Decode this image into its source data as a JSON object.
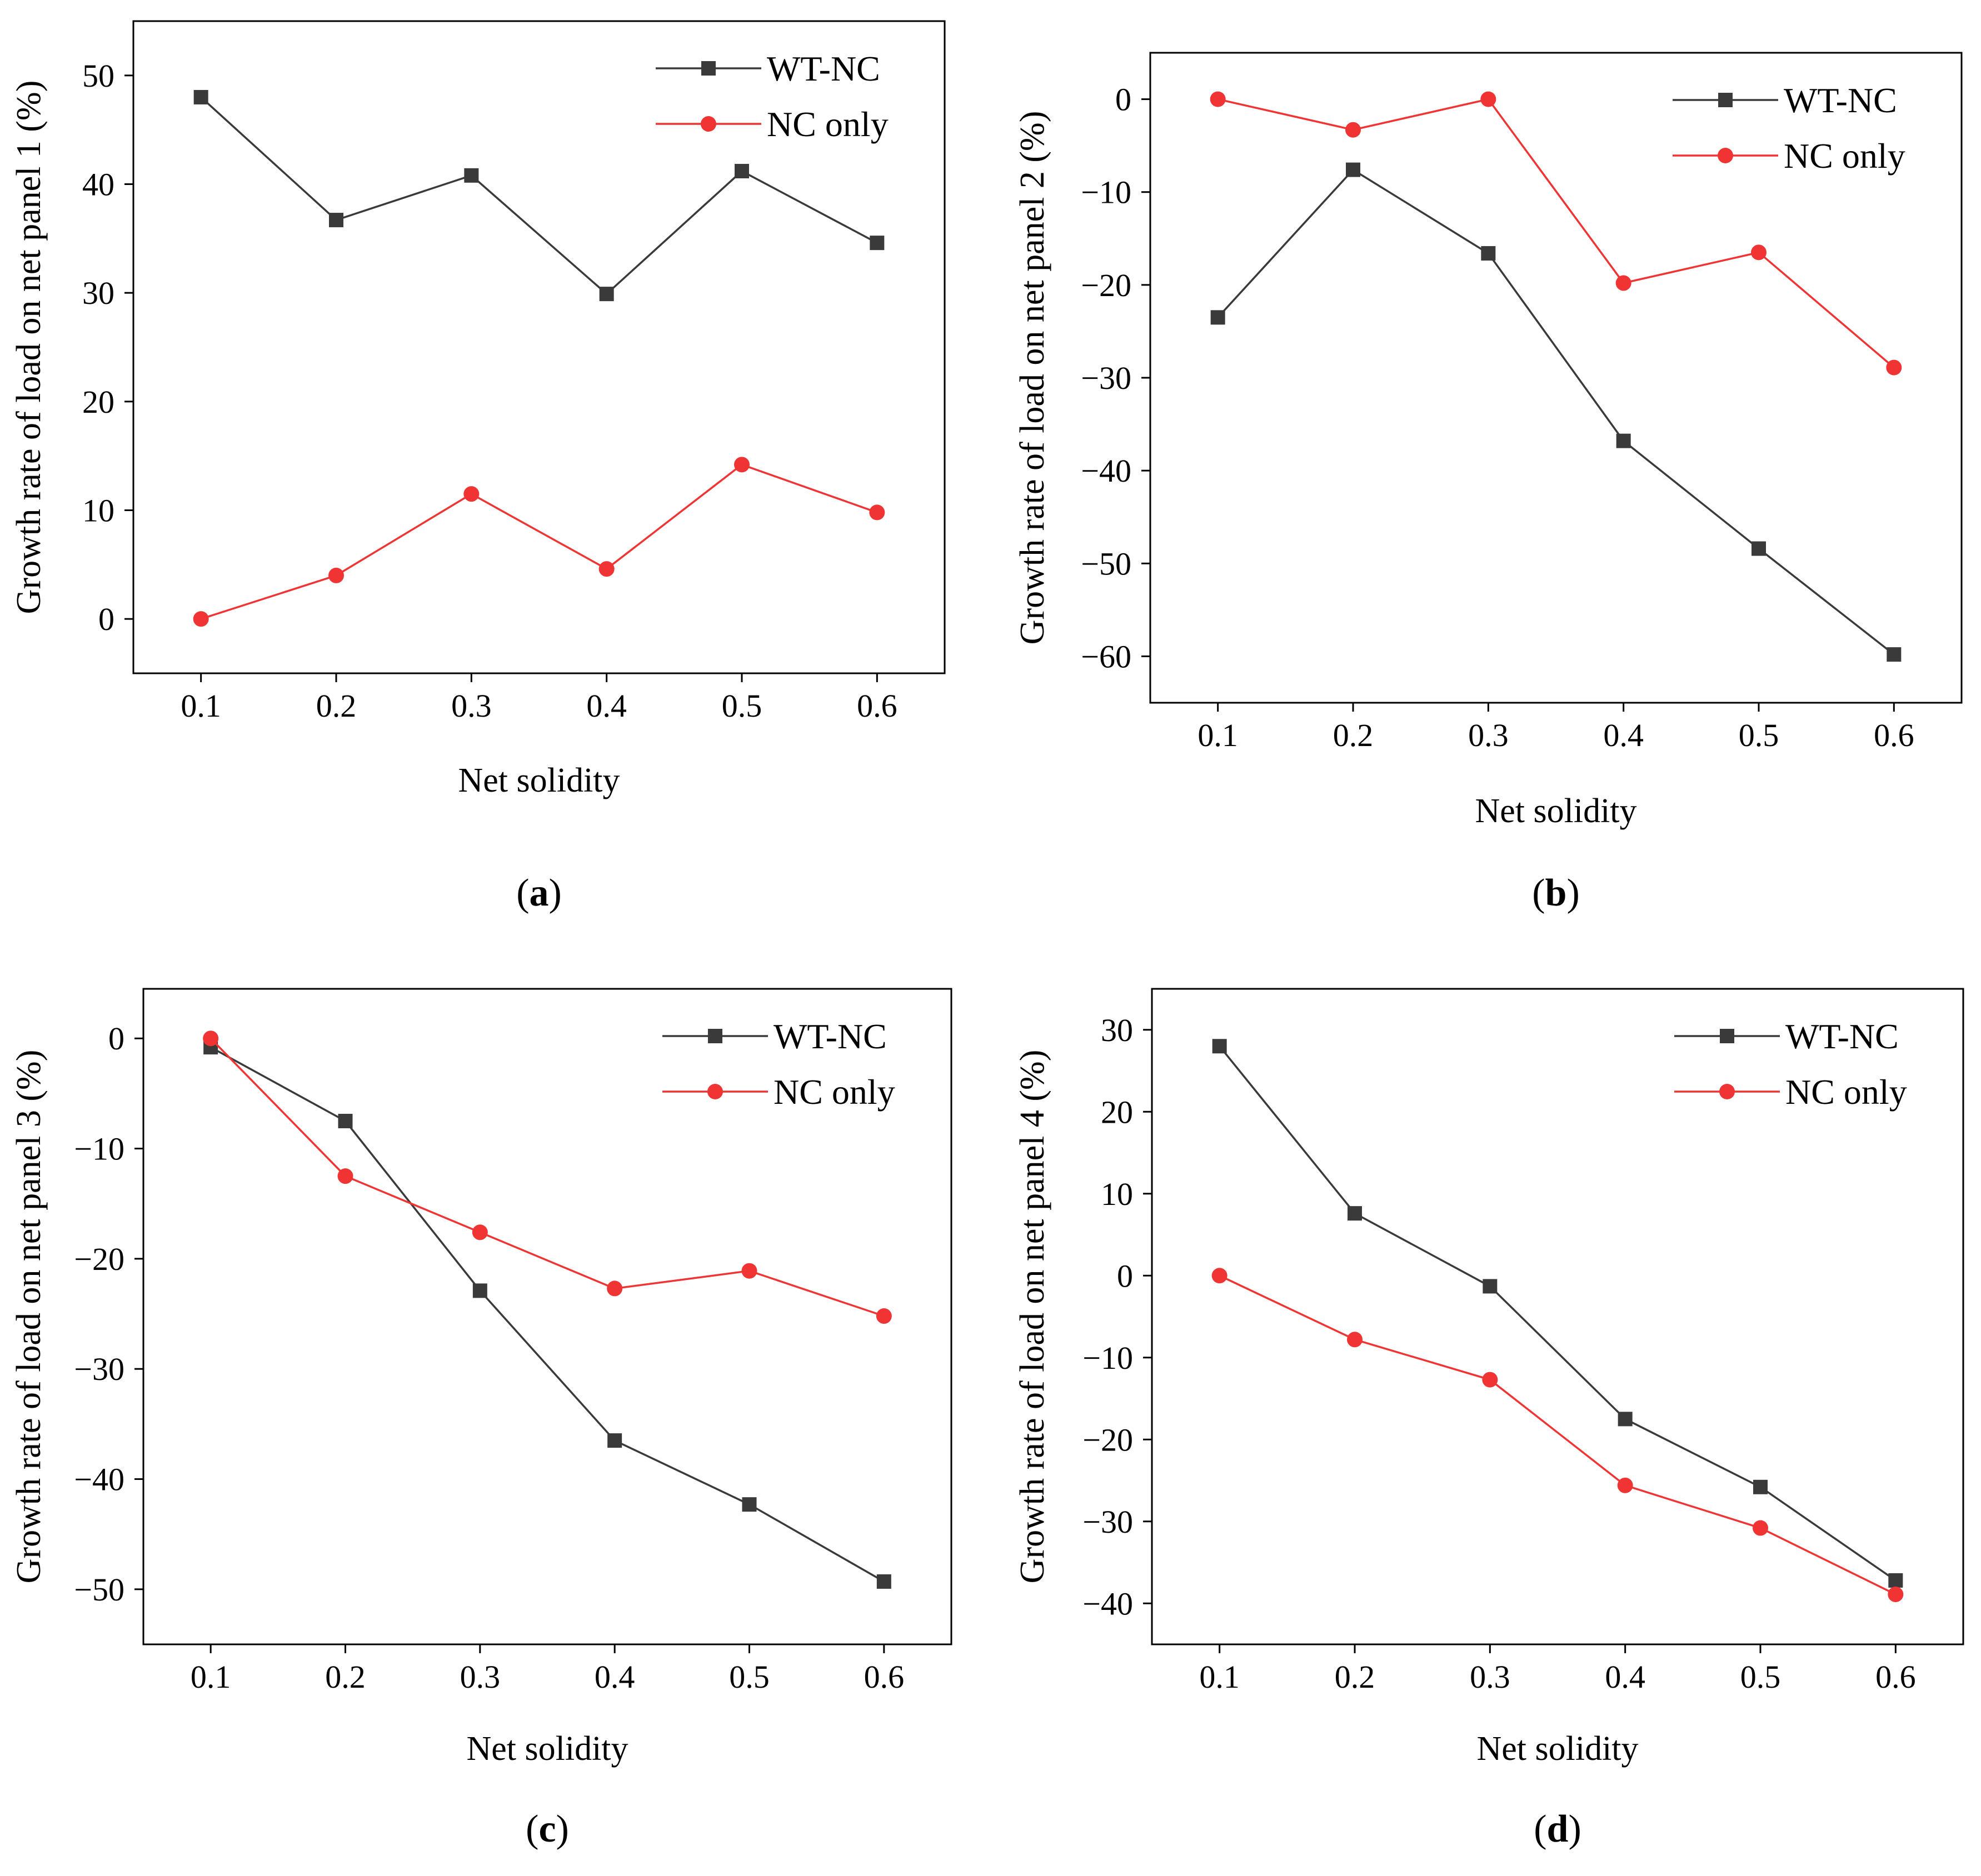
{
  "chart_data": [
    {
      "type": "line",
      "panel_label": "a",
      "caption_open": "(",
      "caption_close": ")",
      "xlabel": "Net solidity",
      "ylabel": "Growth rate of load on net panel 1 (%)",
      "x": [
        0.1,
        0.2,
        0.3,
        0.4,
        0.5,
        0.6
      ],
      "xtick_labels": [
        "0.1",
        "0.2",
        "0.3",
        "0.4",
        "0.5",
        "0.6"
      ],
      "xlim": [
        0.05,
        0.65
      ],
      "ylim": [
        -5,
        55
      ],
      "yticks": [
        0,
        10,
        20,
        30,
        40,
        50
      ],
      "ytick_labels": [
        "0",
        "10",
        "20",
        "30",
        "40",
        "50"
      ],
      "legend_position": "top-right",
      "series": [
        {
          "name": "WT-NC",
          "marker": "square",
          "color": "#3a3a3a",
          "values": [
            48.0,
            36.7,
            40.8,
            29.9,
            41.2,
            34.6
          ]
        },
        {
          "name": "NC only",
          "marker": "circle",
          "color": "#f03434",
          "values": [
            0.0,
            4.0,
            11.5,
            4.6,
            14.2,
            9.8
          ]
        }
      ]
    },
    {
      "type": "line",
      "panel_label": "b",
      "caption_open": "(",
      "caption_close": ")",
      "xlabel": "Net solidity",
      "ylabel": "Growth rate of load on net panel 2 (%)",
      "x": [
        0.1,
        0.2,
        0.3,
        0.4,
        0.5,
        0.6
      ],
      "xtick_labels": [
        "0.1",
        "0.2",
        "0.3",
        "0.4",
        "0.5",
        "0.6"
      ],
      "xlim": [
        0.05,
        0.65
      ],
      "ylim": [
        -65,
        5
      ],
      "yticks": [
        0,
        -10,
        -20,
        -30,
        -40,
        -50,
        -60
      ],
      "ytick_labels": [
        "0",
        "−10",
        "−20",
        "−30",
        "−40",
        "−50",
        "−60"
      ],
      "legend_position": "top-right",
      "series": [
        {
          "name": "WT-NC",
          "marker": "square",
          "color": "#3a3a3a",
          "values": [
            -23.5,
            -7.6,
            -16.6,
            -36.8,
            -48.4,
            -59.8
          ]
        },
        {
          "name": "NC only",
          "marker": "circle",
          "color": "#f03434",
          "values": [
            0.0,
            -3.3,
            0.0,
            -19.8,
            -16.5,
            -28.9
          ]
        }
      ]
    },
    {
      "type": "line",
      "panel_label": "c",
      "caption_open": "(",
      "caption_close": ")",
      "xlabel": "Net solidity",
      "ylabel": "Growth rate of load on net panel 3 (%)",
      "x": [
        0.1,
        0.2,
        0.3,
        0.4,
        0.5,
        0.6
      ],
      "xtick_labels": [
        "0.1",
        "0.2",
        "0.3",
        "0.4",
        "0.5",
        "0.6"
      ],
      "xlim": [
        0.05,
        0.65
      ],
      "ylim": [
        -55,
        4.5
      ],
      "yticks": [
        0,
        -10,
        -20,
        -30,
        -40,
        -50
      ],
      "ytick_labels": [
        "0",
        "−10",
        "−20",
        "−30",
        "−40",
        "−50"
      ],
      "legend_position": "top-right",
      "series": [
        {
          "name": "WT-NC",
          "marker": "square",
          "color": "#3a3a3a",
          "values": [
            -0.8,
            -7.5,
            -22.9,
            -36.5,
            -42.3,
            -49.3
          ]
        },
        {
          "name": "NC only",
          "marker": "circle",
          "color": "#f03434",
          "values": [
            0.0,
            -12.5,
            -17.6,
            -22.7,
            -21.1,
            -25.2
          ]
        }
      ]
    },
    {
      "type": "line",
      "panel_label": "d",
      "caption_open": "(",
      "caption_close": ")",
      "xlabel": "Net solidity",
      "ylabel": "Growth rate of load on net panel 4 (%)",
      "x": [
        0.1,
        0.2,
        0.3,
        0.4,
        0.5,
        0.6
      ],
      "xtick_labels": [
        "0.1",
        "0.2",
        "0.3",
        "0.4",
        "0.5",
        "0.6"
      ],
      "xlim": [
        0.05,
        0.65
      ],
      "ylim": [
        -45,
        35
      ],
      "yticks": [
        30,
        20,
        10,
        0,
        -10,
        -20,
        -30,
        -40
      ],
      "ytick_labels": [
        "30",
        "20",
        "10",
        "0",
        "−10",
        "−20",
        "−30",
        "−40"
      ],
      "legend_position": "top-right",
      "series": [
        {
          "name": "WT-NC",
          "marker": "square",
          "color": "#3a3a3a",
          "values": [
            28.0,
            7.6,
            -1.3,
            -17.5,
            -25.8,
            -37.2
          ]
        },
        {
          "name": "NC only",
          "marker": "circle",
          "color": "#f03434",
          "values": [
            0.0,
            -7.8,
            -12.7,
            -25.6,
            -30.8,
            -38.9
          ]
        }
      ]
    }
  ]
}
